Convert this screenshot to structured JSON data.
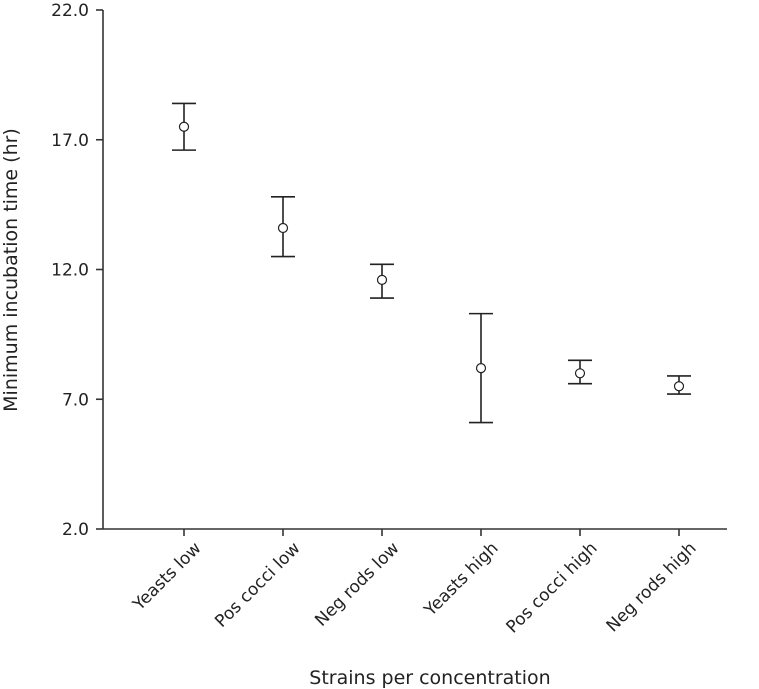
{
  "chart_data": {
    "type": "scatter",
    "title": "",
    "xlabel": "Strains per concentration",
    "ylabel": "Minimum incubation time (hr)",
    "ylim": [
      2.0,
      22.0
    ],
    "yticks": [
      "2.0",
      "7.0",
      "12.0",
      "17.0",
      "22.0"
    ],
    "ytick_values": [
      2,
      7,
      12,
      17,
      22
    ],
    "categories": [
      "Yeasts low",
      "Pos cocci low",
      "Neg rods low",
      "Yeasts high",
      "Pos cocci high",
      "Neg rods high"
    ],
    "series": [
      {
        "values": [
          17.5,
          13.6,
          11.6,
          8.2,
          8.0,
          7.5
        ],
        "err_low": [
          16.6,
          12.5,
          10.9,
          6.1,
          7.6,
          7.2
        ],
        "err_high": [
          18.4,
          14.8,
          12.2,
          10.3,
          8.5,
          7.9
        ]
      }
    ],
    "grid": false,
    "legend": "none",
    "marker": "open-circle"
  }
}
